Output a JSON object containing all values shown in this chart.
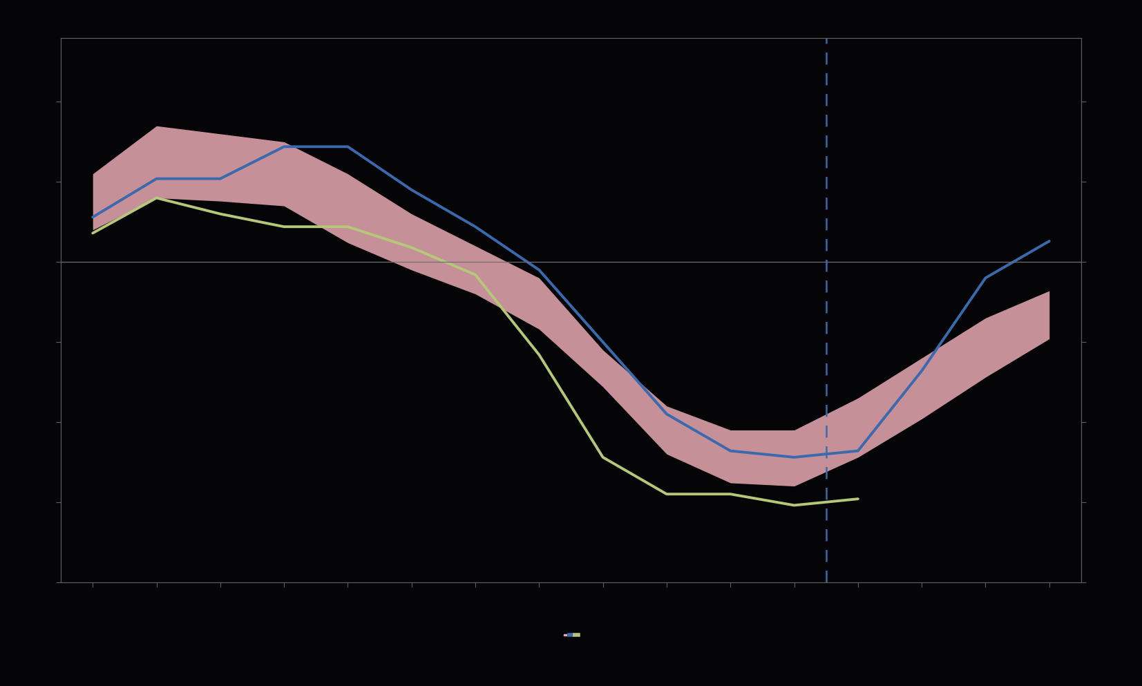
{
  "x": [
    0,
    1,
    2,
    3,
    4,
    5,
    6,
    7,
    8,
    9,
    10,
    11,
    12,
    13,
    14,
    15
  ],
  "pbo_upper": [
    0.55,
    0.85,
    0.8,
    0.75,
    0.55,
    0.3,
    0.1,
    -0.1,
    -0.55,
    -0.9,
    -1.05,
    -1.05,
    -0.85,
    -0.6,
    -0.35,
    -0.18
  ],
  "pbo_lower": [
    0.2,
    0.4,
    0.38,
    0.35,
    0.12,
    -0.05,
    -0.2,
    -0.42,
    -0.78,
    -1.2,
    -1.38,
    -1.4,
    -1.22,
    -0.98,
    -0.72,
    -0.48
  ],
  "imf_line": [
    0.28,
    0.52,
    0.52,
    0.72,
    0.72,
    0.45,
    0.22,
    -0.05,
    -0.5,
    -0.95,
    -1.18,
    -1.22,
    -1.18,
    -0.68,
    -0.1,
    0.13
  ],
  "oecd_line": [
    0.18,
    0.4,
    0.3,
    0.22,
    0.22,
    0.09,
    -0.08,
    -0.58,
    -1.22,
    -1.45,
    -1.45,
    -1.52,
    -1.48,
    null,
    null,
    null
  ],
  "dashed_vline_x": 11.5,
  "ylim": [
    -2.0,
    1.4
  ],
  "background_color": "#050508",
  "plot_area_color": "#050508",
  "pbo_fill_color": "#e8aab2",
  "pbo_fill_alpha": 0.85,
  "imf_color": "#3a6aad",
  "oecd_color": "#b5c87a",
  "dashed_line_color": "#3a6aad",
  "zero_line_color": "#707070",
  "tick_color": "#606060",
  "spine_color": "#606060",
  "legend_pbo_color": "#e8aab2",
  "legend_imf_color": "#3a6aad",
  "legend_oecd_color": "#b5c87a"
}
